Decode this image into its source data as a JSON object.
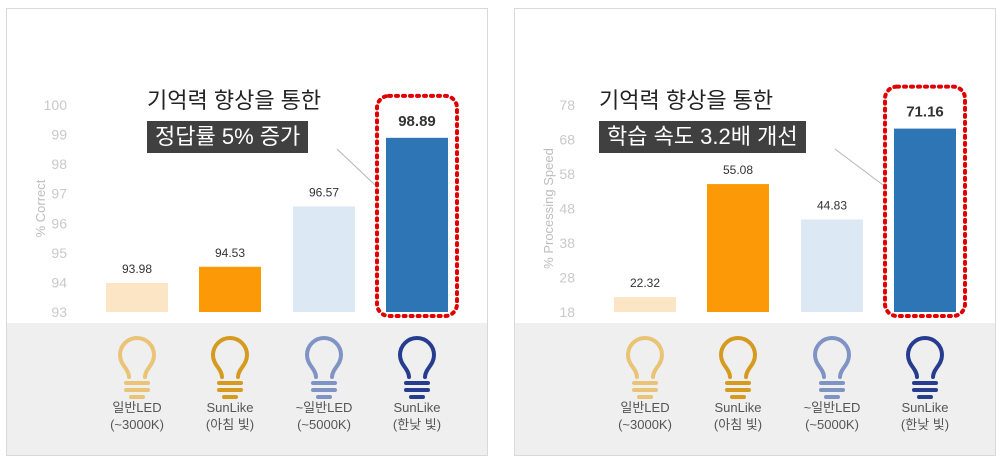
{
  "chart_data": [
    {
      "type": "bar",
      "ylabel": "% Correct",
      "ylim": [
        93,
        100
      ],
      "yticks": [
        93,
        94,
        95,
        96,
        97,
        98,
        99,
        100
      ],
      "categories": [
        "일반LED\n(~3000K)",
        "SunLike\n(아침 빛)",
        "~일반LED\n(~5000K)",
        "SunLike\n(한낮 빛)"
      ],
      "values": [
        93.98,
        94.53,
        96.57,
        98.89
      ],
      "labels": [
        "93.98",
        "94.53",
        "96.57",
        "98.89"
      ],
      "colors": [
        "#fbe5c5",
        "#fb9a06",
        "#dde8f5",
        "#2e75b6"
      ],
      "annotation_line1": "기억력 향상을 통한",
      "annotation_line2": "정답률 5% 증가",
      "highlight_index": 3
    },
    {
      "type": "bar",
      "ylabel": "% Processing Speed",
      "ylim": [
        18,
        78
      ],
      "yticks": [
        18,
        28,
        38,
        48,
        58,
        68,
        78
      ],
      "categories": [
        "일반LED\n(~3000K)",
        "SunLike\n(아침 빛)",
        "~일반LED\n(~5000K)",
        "SunLike\n(한낮 빛)"
      ],
      "values": [
        22.32,
        55.08,
        44.83,
        71.16
      ],
      "labels": [
        "22.32",
        "55.08",
        "44.83",
        "71.16"
      ],
      "colors": [
        "#fbe5c5",
        "#fb9a06",
        "#dde8f5",
        "#2e75b6"
      ],
      "annotation_line1": "기억력 향상을 통한",
      "annotation_line2": "학습 속도 3.2배 개선",
      "highlight_index": 3
    }
  ],
  "icons": [
    {
      "name": "warm-bulb-icon",
      "color": "#e9c477"
    },
    {
      "name": "sunlike-morning-bulb-icon",
      "color": "#d59a1e"
    },
    {
      "name": "cool-bulb-icon",
      "color": "#7f93c4"
    },
    {
      "name": "sunlike-midday-bulb-icon",
      "color": "#263c8f"
    }
  ],
  "highlight_color": "#e00000"
}
